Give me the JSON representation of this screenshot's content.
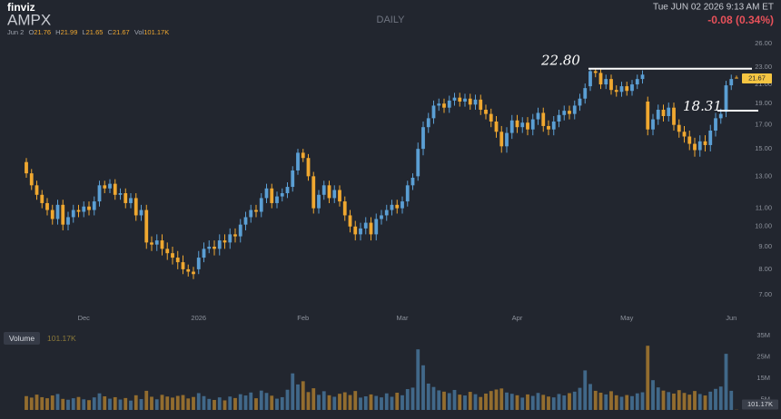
{
  "header": {
    "brand": "finviz",
    "ticker": "AMPX",
    "timeframe": "DAILY",
    "datetime": "Tue JUN 02 2026 9:13 AM ET",
    "change": "-0.08 (0.34%)",
    "date": "Jun 2",
    "open_label": "O",
    "high_label": "H",
    "low_label": "L",
    "close_label": "C",
    "volume_label": "Vol"
  },
  "chart_data": {
    "type": "candlestick",
    "categories": [
      null,
      null,
      null,
      null,
      null,
      null,
      null,
      null,
      null,
      null,
      null,
      "Dec",
      null,
      null,
      null,
      null,
      null,
      null,
      null,
      null,
      null,
      null,
      null,
      null,
      null,
      null,
      null,
      null,
      null,
      null,
      null,
      null,
      null,
      "2026",
      null,
      null,
      null,
      null,
      null,
      null,
      null,
      null,
      null,
      null,
      null,
      null,
      null,
      null,
      null,
      null,
      null,
      null,
      null,
      "Feb",
      null,
      null,
      null,
      null,
      null,
      null,
      null,
      null,
      null,
      null,
      null,
      null,
      null,
      null,
      null,
      null,
      null,
      null,
      "Mar",
      null,
      null,
      null,
      null,
      null,
      null,
      null,
      null,
      null,
      null,
      null,
      null,
      null,
      null,
      null,
      null,
      null,
      null,
      null,
      null,
      null,
      "Apr",
      null,
      null,
      null,
      null,
      null,
      null,
      null,
      null,
      null,
      null,
      null,
      null,
      null,
      null,
      null,
      null,
      null,
      null,
      null,
      null,
      "May",
      null,
      null,
      null,
      null,
      null,
      null,
      null,
      null,
      null,
      null,
      null,
      null,
      null,
      null,
      null,
      null,
      null,
      null,
      null,
      "Jun",
      null
    ],
    "open": [
      14.0,
      13.2,
      12.4,
      11.8,
      11.3,
      10.9,
      10.4,
      11.2,
      10.1,
      10.5,
      10.9,
      10.8,
      11.1,
      10.9,
      11.4,
      12.4,
      12.2,
      12.5,
      11.8,
      11.9,
      11.3,
      11.6,
      10.6,
      10.9,
      9.2,
      9.1,
      9.3,
      8.9,
      8.7,
      8.5,
      8.3,
      8.0,
      7.9,
      8.0,
      8.5,
      8.9,
      9.0,
      8.9,
      9.3,
      9.2,
      9.6,
      9.5,
      10.1,
      10.5,
      10.9,
      10.8,
      11.6,
      12.2,
      11.3,
      11.7,
      11.9,
      12.3,
      13.4,
      14.7,
      14.3,
      13.0,
      11.0,
      11.8,
      12.4,
      11.6,
      12.1,
      11.4,
      10.6,
      10.0,
      9.6,
      9.9,
      10.2,
      9.6,
      10.4,
      10.6,
      10.9,
      11.2,
      11.0,
      11.4,
      12.4,
      13.0,
      15.0,
      16.8,
      17.6,
      18.8,
      19.0,
      18.6,
      19.3,
      19.6,
      19.2,
      19.5,
      18.9,
      19.4,
      18.4,
      18.0,
      17.3,
      16.4,
      15.2,
      16.3,
      17.4,
      16.8,
      17.2,
      16.6,
      17.5,
      18.1,
      16.9,
      16.6,
      17.3,
      17.9,
      18.3,
      18.0,
      18.8,
      19.5,
      20.8,
      22.5,
      22.3,
      21.0,
      21.6,
      20.4,
      20.2,
      20.8,
      20.3,
      21.0,
      21.6,
      19.2,
      16.6,
      17.5,
      18.4,
      17.8,
      18.6,
      17.0,
      16.4,
      16.0,
      15.4,
      14.9,
      15.6,
      15.3,
      16.5,
      17.6,
      18.2,
      20.9,
      21.76
    ],
    "high": [
      14.3,
      13.5,
      12.7,
      12.1,
      11.6,
      11.2,
      11.5,
      11.5,
      10.8,
      11.2,
      11.2,
      11.4,
      11.4,
      11.7,
      12.7,
      12.7,
      12.8,
      12.8,
      12.2,
      12.2,
      11.9,
      11.9,
      11.2,
      11.2,
      9.5,
      9.6,
      9.6,
      9.2,
      9.0,
      8.8,
      8.6,
      8.2,
      8.1,
      8.8,
      9.2,
      9.3,
      9.3,
      9.6,
      9.6,
      9.9,
      9.9,
      10.4,
      10.8,
      11.2,
      11.2,
      11.9,
      12.5,
      12.5,
      12.0,
      12.2,
      12.6,
      13.7,
      15.0,
      15.0,
      14.6,
      13.3,
      12.1,
      12.7,
      12.7,
      12.4,
      12.4,
      11.7,
      10.9,
      10.3,
      10.2,
      10.5,
      10.5,
      10.7,
      10.9,
      11.2,
      11.5,
      11.5,
      11.7,
      12.7,
      13.2,
      15.5,
      17.3,
      18.1,
      19.3,
      19.5,
      19.5,
      19.8,
      20.1,
      20.1,
      20.0,
      20.0,
      19.9,
      19.9,
      18.9,
      18.5,
      17.8,
      16.9,
      16.8,
      17.9,
      17.9,
      17.7,
      17.7,
      18.0,
      18.6,
      18.6,
      17.4,
      17.8,
      18.4,
      18.8,
      18.8,
      19.3,
      20.0,
      21.1,
      22.8,
      22.8,
      22.8,
      22.1,
      22.1,
      20.9,
      21.3,
      21.3,
      21.5,
      22.1,
      22.6,
      19.7,
      18.0,
      18.9,
      18.9,
      19.1,
      19.1,
      17.5,
      16.9,
      16.5,
      15.9,
      16.1,
      16.1,
      17.0,
      18.1,
      18.5,
      21.4,
      22.1,
      21.99
    ],
    "low": [
      12.9,
      12.1,
      11.5,
      11.0,
      10.6,
      10.1,
      10.1,
      9.8,
      9.8,
      10.2,
      10.5,
      10.5,
      10.6,
      10.6,
      11.1,
      11.9,
      11.9,
      11.5,
      11.5,
      11.0,
      11.0,
      10.3,
      10.3,
      8.9,
      8.8,
      8.8,
      8.6,
      8.4,
      8.2,
      8.0,
      7.8,
      7.7,
      7.6,
      7.8,
      8.3,
      8.7,
      8.6,
      8.6,
      8.9,
      8.9,
      9.2,
      9.2,
      9.8,
      10.2,
      10.5,
      10.5,
      11.3,
      11.0,
      11.0,
      11.4,
      11.6,
      12.0,
      13.1,
      14.0,
      12.7,
      10.7,
      10.7,
      11.5,
      11.3,
      11.3,
      11.1,
      10.3,
      9.7,
      9.3,
      9.3,
      9.6,
      9.3,
      9.3,
      10.1,
      10.3,
      10.6,
      10.7,
      10.7,
      11.1,
      12.1,
      12.7,
      14.5,
      16.3,
      17.1,
      18.3,
      18.1,
      18.1,
      18.8,
      18.7,
      18.7,
      18.4,
      18.4,
      17.9,
      17.5,
      16.8,
      15.9,
      14.7,
      14.7,
      15.8,
      16.3,
      16.3,
      16.1,
      16.1,
      17.0,
      16.4,
      16.1,
      16.1,
      16.8,
      17.4,
      17.5,
      17.5,
      18.3,
      19.0,
      20.3,
      21.8,
      20.5,
      20.5,
      19.9,
      19.7,
      19.7,
      19.8,
      19.8,
      20.5,
      21.1,
      16.1,
      16.1,
      17.0,
      17.3,
      17.3,
      16.5,
      15.9,
      15.5,
      14.9,
      14.4,
      14.4,
      14.8,
      14.8,
      16.0,
      17.1,
      17.7,
      20.4,
      21.65
    ],
    "close": [
      13.2,
      12.4,
      11.8,
      11.3,
      10.9,
      10.4,
      11.2,
      10.1,
      10.5,
      10.9,
      10.8,
      11.1,
      10.9,
      11.4,
      12.4,
      12.2,
      12.5,
      11.8,
      11.9,
      11.3,
      11.6,
      10.6,
      10.9,
      9.2,
      9.1,
      9.3,
      8.9,
      8.7,
      8.5,
      8.3,
      8.0,
      7.9,
      7.8,
      8.5,
      8.9,
      9.0,
      8.9,
      9.3,
      9.2,
      9.6,
      9.5,
      10.1,
      10.5,
      10.9,
      10.8,
      11.6,
      12.2,
      11.3,
      11.7,
      11.9,
      12.3,
      13.4,
      14.7,
      14.3,
      13.0,
      11.0,
      11.8,
      12.4,
      11.6,
      12.1,
      11.4,
      10.6,
      10.0,
      9.6,
      9.9,
      10.2,
      9.6,
      10.4,
      10.6,
      10.9,
      11.2,
      11.0,
      11.4,
      12.4,
      12.9,
      15.0,
      16.8,
      17.6,
      18.8,
      19.0,
      18.6,
      19.3,
      19.6,
      19.2,
      19.5,
      18.9,
      19.4,
      18.4,
      18.0,
      17.3,
      16.4,
      15.2,
      16.3,
      17.4,
      16.8,
      17.2,
      16.6,
      17.5,
      18.1,
      16.9,
      16.6,
      17.3,
      17.9,
      18.3,
      18.0,
      18.8,
      19.5,
      20.6,
      22.5,
      22.3,
      21.0,
      21.6,
      20.4,
      20.2,
      20.8,
      20.3,
      21.0,
      21.6,
      22.1,
      16.6,
      17.5,
      18.4,
      17.8,
      18.6,
      17.0,
      16.4,
      16.0,
      15.4,
      14.9,
      15.6,
      15.3,
      16.5,
      17.6,
      18.0,
      20.9,
      21.6,
      21.67
    ],
    "up_color": "#5b9fd4",
    "down_color": "#f0a830",
    "current_color": "#f5c542",
    "ylim": [
      6.37,
      27.0
    ],
    "log_scale": true,
    "grid": false,
    "yticks": [
      {
        "value": 7,
        "label": "7.00"
      },
      {
        "value": 8,
        "label": "8.00"
      },
      {
        "value": 9,
        "label": "9.00"
      },
      {
        "value": 10,
        "label": "10.00"
      },
      {
        "value": 11,
        "label": "11.00"
      },
      {
        "value": 13,
        "label": "13.00"
      },
      {
        "value": 15,
        "label": "15.00"
      },
      {
        "value": 17,
        "label": "17.00"
      },
      {
        "value": 19,
        "label": "19.00"
      },
      {
        "value": 21,
        "label": "21.00"
      },
      {
        "value": 23,
        "label": "23.00"
      },
      {
        "value": 26,
        "label": "26.00"
      }
    ],
    "annotations": [
      {
        "label": "22.80",
        "value": 22.8
      },
      {
        "label": "18.31",
        "value": 18.31
      }
    ],
    "volume": {
      "name": "Volume",
      "value_label": "101.17K",
      "ylim": [
        0,
        38.4
      ],
      "yticks": [
        {
          "value": 5,
          "label": "5M"
        },
        {
          "value": 15,
          "label": "15M"
        },
        {
          "value": 25,
          "label": "25M"
        },
        {
          "value": 35,
          "label": "35M"
        }
      ],
      "values": [
        6.5,
        5.8,
        7.2,
        6.0,
        5.5,
        6.8,
        7.5,
        5.2,
        4.8,
        5.5,
        6.1,
        5.0,
        4.6,
        5.9,
        7.8,
        6.4,
        5.3,
        6.0,
        4.9,
        5.6,
        4.4,
        6.9,
        5.1,
        9.0,
        6.2,
        5.0,
        7.1,
        6.3,
        5.8,
        6.6,
        7.0,
        5.4,
        6.1,
        7.9,
        6.5,
        5.2,
        4.7,
        5.9,
        4.5,
        6.3,
        5.6,
        7.4,
        6.8,
        8.2,
        5.5,
        9.1,
        8.0,
        6.7,
        5.3,
        6.0,
        9.5,
        17.2,
        12.0,
        13.5,
        8.4,
        10.2,
        7.1,
        8.8,
        6.9,
        6.2,
        7.6,
        8.3,
        7.0,
        8.9,
        5.8,
        6.4,
        7.3,
        6.6,
        5.9,
        7.8,
        6.2,
        8.1,
        6.9,
        9.8,
        10.5,
        28.5,
        21.0,
        12.4,
        10.8,
        9.2,
        8.6,
        7.9,
        9.4,
        7.2,
        6.8,
        8.5,
        7.4,
        6.1,
        7.7,
        8.9,
        9.6,
        10.1,
        8.2,
        7.6,
        6.9,
        5.8,
        7.3,
        6.6,
        8.0,
        7.1,
        6.3,
        5.9,
        7.5,
        6.8,
        7.9,
        8.6,
        10.4,
        18.6,
        12.2,
        9.0,
        8.1,
        7.3,
        8.8,
        6.9,
        6.2,
        7.0,
        6.5,
        7.8,
        8.3,
        30.2,
        14.0,
        10.6,
        9.1,
        8.4,
        7.7,
        9.3,
        8.0,
        7.2,
        8.9,
        7.5,
        6.8,
        8.6,
        9.9,
        11.0,
        26.4,
        9.0,
        0.10117
      ]
    }
  }
}
